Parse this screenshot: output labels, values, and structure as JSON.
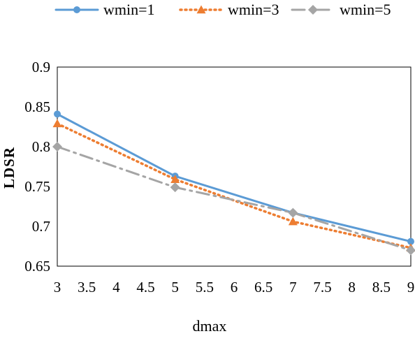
{
  "chart_data": {
    "type": "line",
    "xlabel": "dmax",
    "ylabel": "LDSR",
    "xlim": [
      3,
      9
    ],
    "ylim": [
      0.65,
      0.9
    ],
    "x_ticks": [
      "3",
      "3.5",
      "4",
      "4.5",
      "5",
      "5.5",
      "6",
      "6.5",
      "7",
      "7.5",
      "8",
      "8.5",
      "9"
    ],
    "y_ticks": [
      "0.9",
      "0.85",
      "0.8",
      "0.75",
      "0.7",
      "0.65"
    ],
    "x": [
      3,
      5,
      7,
      9
    ],
    "grid": false,
    "legend_position": "top",
    "series": [
      {
        "name": "wmin=1",
        "values": [
          0.841,
          0.763,
          0.717,
          0.681
        ],
        "color": "#5b9bd5",
        "style": "solid",
        "marker": "circle"
      },
      {
        "name": "wmin=3",
        "values": [
          0.829,
          0.759,
          0.706,
          0.673
        ],
        "color": "#ed7d31",
        "style": "dotted",
        "marker": "triangle"
      },
      {
        "name": "wmin=5",
        "values": [
          0.8,
          0.749,
          0.717,
          0.67
        ],
        "color": "#a5a5a5",
        "style": "dashdot",
        "marker": "diamond"
      }
    ]
  }
}
